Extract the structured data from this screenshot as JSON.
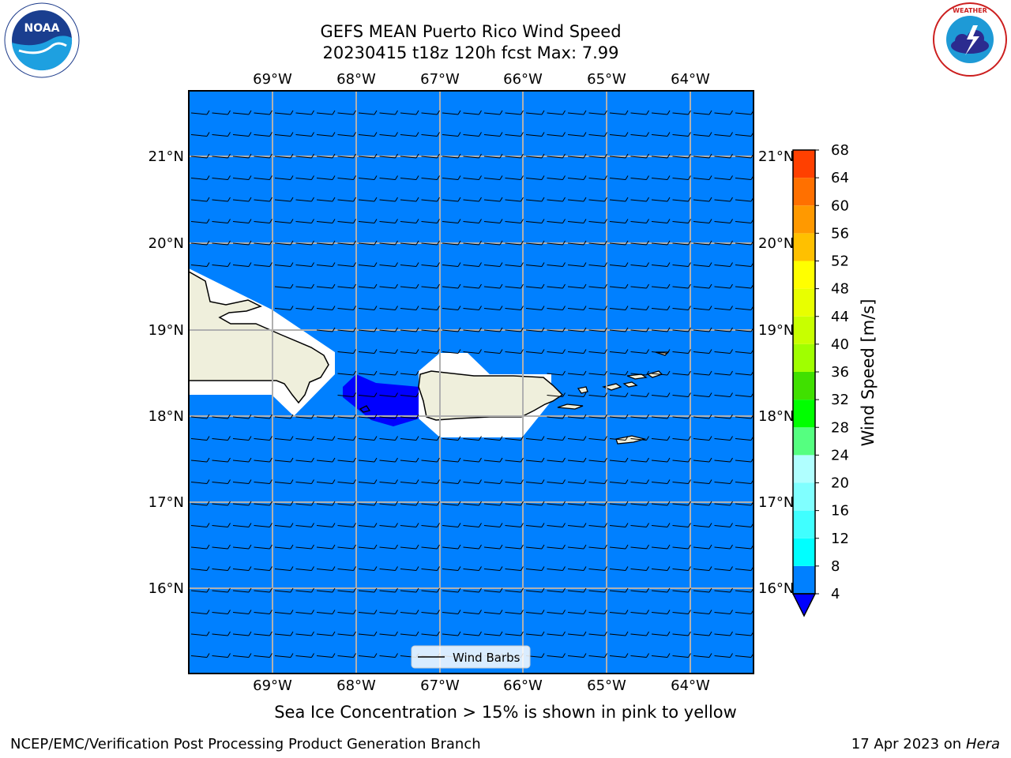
{
  "title_line1": "GEFS MEAN Puerto Rico Wind Speed",
  "title_line2": "20230415 t18z 120h fcst   Max: 7.99",
  "lon_ticks": [
    "69°W",
    "68°W",
    "67°W",
    "66°W",
    "65°W",
    "64°W"
  ],
  "lat_ticks": [
    "21°N",
    "20°N",
    "19°N",
    "18°N",
    "17°N",
    "16°N"
  ],
  "legend_label": "Wind Barbs",
  "colorbar": {
    "label": "Wind Speed [m/s]",
    "ticks": [
      "4",
      "8",
      "12",
      "16",
      "20",
      "24",
      "28",
      "32",
      "36",
      "40",
      "44",
      "48",
      "52",
      "56",
      "60",
      "64",
      "68"
    ],
    "colors": [
      "#0080ff",
      "#00ffff",
      "#40ffff",
      "#80ffff",
      "#b0ffff",
      "#55ff80",
      "#00ff00",
      "#40e000",
      "#a0ff00",
      "#c8ff00",
      "#e8ff00",
      "#ffff00",
      "#ffc000",
      "#ff9900",
      "#ff7000",
      "#ff4000",
      "#ff2000",
      "#ff0000"
    ],
    "under_color": "#0000ff"
  },
  "field_colors": {
    "ocean": "#0080ff",
    "calm": "#0000ff",
    "land": "#efefdc",
    "mask": "#ffffff"
  },
  "note": "Sea Ice Concentration > 15% is shown in pink to yellow",
  "footer_left": "NCEP/EMC/Verification Post Processing Product Generation Branch",
  "footer_right_date": "17 Apr 2023 on ",
  "footer_right_machine": "Hera",
  "noaa_logo_text": "NOAA",
  "nws_logo_text": "NATIONAL WEATHER SERVICE"
}
